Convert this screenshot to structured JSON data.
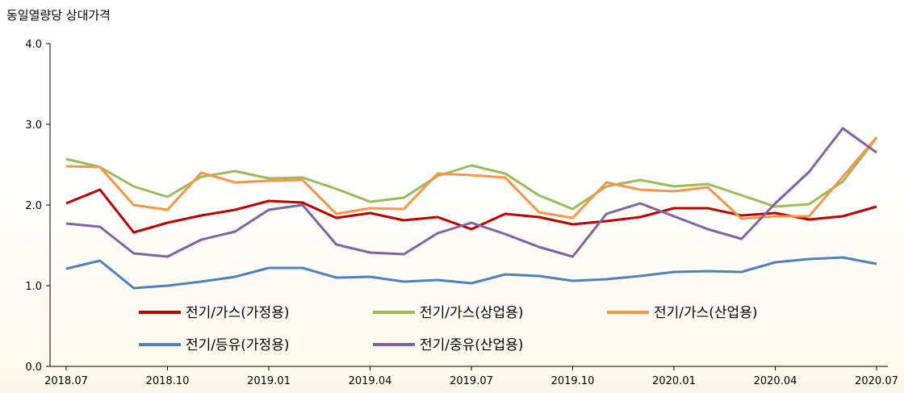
{
  "chart_data": {
    "type": "line",
    "title": "동일열량당 상대가격",
    "categories": [
      "2018.07",
      null,
      null,
      "2018.10",
      null,
      null,
      "2019.01",
      null,
      null,
      "2019.04",
      null,
      null,
      "2019.07",
      null,
      null,
      "2019.10",
      null,
      null,
      "2020.01",
      null,
      null,
      "2020.04",
      null,
      null,
      "2020.07"
    ],
    "series": [
      {
        "name": "전기/가스(가정용)",
        "color": "#c00000",
        "values": [
          2.02,
          2.19,
          1.66,
          1.78,
          1.87,
          1.94,
          2.05,
          2.03,
          1.84,
          1.9,
          1.81,
          1.85,
          1.7,
          1.89,
          1.85,
          1.76,
          1.8,
          1.85,
          1.96,
          1.96,
          1.87,
          1.9,
          1.82,
          1.86,
          1.98
        ]
      },
      {
        "name": "전기/가스(상업용)",
        "color": "#9bbb59",
        "values": [
          2.57,
          2.47,
          2.23,
          2.1,
          2.35,
          2.42,
          2.33,
          2.34,
          2.2,
          2.04,
          2.09,
          2.36,
          2.49,
          2.39,
          2.12,
          1.95,
          2.23,
          2.31,
          2.23,
          2.26,
          2.12,
          1.98,
          2.01,
          2.29,
          2.83
        ]
      },
      {
        "name": "전기/가스(산업용)",
        "color": "#f79646",
        "values": [
          2.48,
          2.47,
          2.0,
          1.94,
          2.4,
          2.28,
          2.3,
          2.31,
          1.89,
          1.96,
          1.95,
          2.39,
          2.37,
          2.34,
          1.91,
          1.84,
          2.28,
          2.19,
          2.17,
          2.22,
          1.83,
          1.86,
          1.86,
          2.35,
          2.84
        ]
      },
      {
        "name": "전기/등유(가정용)",
        "color": "#4f81bd",
        "values": [
          1.21,
          1.31,
          0.97,
          1.0,
          1.05,
          1.11,
          1.22,
          1.22,
          1.1,
          1.11,
          1.05,
          1.07,
          1.03,
          1.14,
          1.12,
          1.06,
          1.08,
          1.12,
          1.17,
          1.18,
          1.17,
          1.29,
          1.33,
          1.35,
          1.27
        ]
      },
      {
        "name": "전기/중유(산업용)",
        "color": "#8064a2",
        "values": [
          1.77,
          1.73,
          1.4,
          1.36,
          1.57,
          1.67,
          1.94,
          2.0,
          1.51,
          1.41,
          1.39,
          1.65,
          1.78,
          1.64,
          1.48,
          1.36,
          1.89,
          2.02,
          1.86,
          1.7,
          1.58,
          2.02,
          2.41,
          2.95,
          2.65
        ]
      }
    ],
    "ylim": [
      0,
      4
    ],
    "yticks": [
      {
        "value": 0,
        "label": "0.0"
      },
      {
        "value": 1,
        "label": "1.0"
      },
      {
        "value": 2,
        "label": "2.0"
      },
      {
        "value": 3,
        "label": "3.0"
      },
      {
        "value": 4,
        "label": "4.0"
      }
    ],
    "grid": false
  }
}
